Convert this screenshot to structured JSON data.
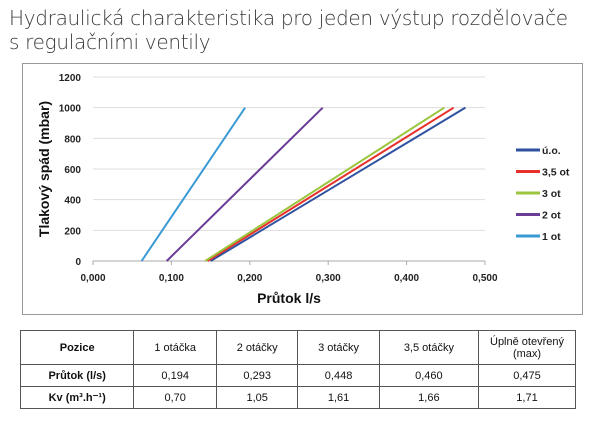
{
  "title_lines": [
    "Hydraulická charakteristika pro jeden výstup rozdělovače",
    "s regulačními ventily"
  ],
  "chart_data": {
    "type": "line",
    "title": "",
    "xlabel": "Průtok l/s",
    "ylabel": "Tlakový spád (mbar)",
    "xlim": [
      0,
      0.5
    ],
    "ylim": [
      0,
      1200
    ],
    "xticks": [
      "0,000",
      "0,100",
      "0,200",
      "0,300",
      "0,400",
      "0,500"
    ],
    "xtick_values": [
      0,
      0.1,
      0.2,
      0.3,
      0.4,
      0.5
    ],
    "yticks": [
      "0",
      "200",
      "400",
      "600",
      "800",
      "1000",
      "1200"
    ],
    "ytick_values": [
      0,
      200,
      400,
      600,
      800,
      1000,
      1200
    ],
    "grid": "horizontal",
    "legend_position": "right",
    "series": [
      {
        "name": "ú.o.",
        "color": "#2f52a0",
        "x": [
          0.15,
          0.475
        ],
        "y": [
          0,
          1000
        ]
      },
      {
        "name": "3,5 ot",
        "color": "#e8302a",
        "x": [
          0.146,
          0.46
        ],
        "y": [
          0,
          1000
        ]
      },
      {
        "name": "3 ot",
        "color": "#9bc53d",
        "x": [
          0.143,
          0.448
        ],
        "y": [
          0,
          1000
        ]
      },
      {
        "name": "2 ot",
        "color": "#6a3d96",
        "x": [
          0.094,
          0.293
        ],
        "y": [
          0,
          1000
        ]
      },
      {
        "name": "1 ot",
        "color": "#3a9ad4",
        "x": [
          0.062,
          0.194
        ],
        "y": [
          0,
          1000
        ]
      }
    ]
  },
  "table": {
    "header": [
      "Pozice",
      "1 otáčka",
      "2 otáčky",
      "3 otáčky",
      "3,5 otáčky",
      "Úplně otevřený (max)"
    ],
    "rows": [
      [
        "Průtok (l/s)",
        "0,194",
        "0,293",
        "0,448",
        "0,460",
        "0,475"
      ],
      [
        "Kv (m³.h⁻¹)",
        "0,70",
        "1,05",
        "1,61",
        "1,66",
        "1,71"
      ]
    ]
  }
}
